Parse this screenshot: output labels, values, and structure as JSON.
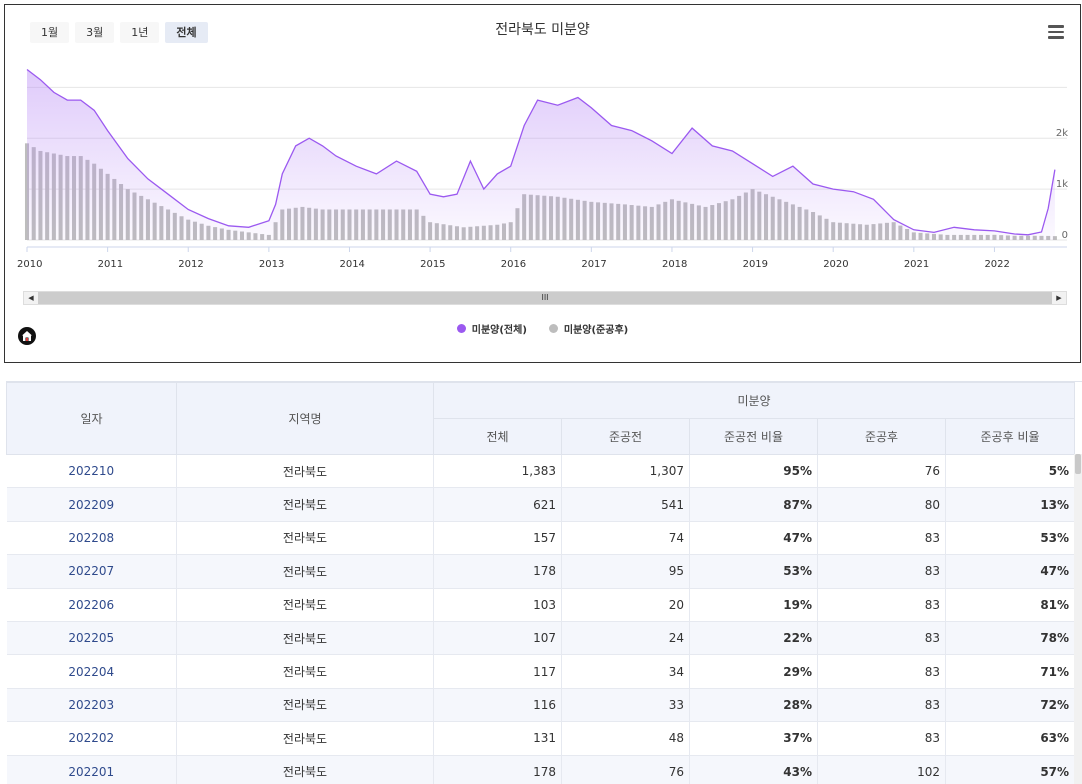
{
  "toolbar": {
    "range_buttons": [
      "1월",
      "3월",
      "1년",
      "전체"
    ],
    "active_range": "전체"
  },
  "legend": {
    "total": "미분양(전체)",
    "after": "미분양(준공후)"
  },
  "colors": {
    "total_line": "#9b59f0",
    "after_bar": "#bdbdbd"
  },
  "scrollbar": {
    "grip": "III"
  },
  "chart_data": {
    "type": "line",
    "title": "전라북도 미분양",
    "xlabel": "",
    "ylabel": "",
    "x_ticks": [
      "2010",
      "2011",
      "2012",
      "2013",
      "2014",
      "2015",
      "2016",
      "2017",
      "2018",
      "2019",
      "2020",
      "2021",
      "2022"
    ],
    "y_ticks": [
      "0",
      "1k",
      "2k"
    ],
    "ylim": [
      0,
      3400
    ],
    "grid": true,
    "legend_position": "bottom",
    "series": [
      {
        "name": "미분양(전체)",
        "type": "area",
        "color": "#9b59f0",
        "points": [
          [
            "2010-01",
            3350
          ],
          [
            "2010-03",
            3150
          ],
          [
            "2010-05",
            2900
          ],
          [
            "2010-07",
            2750
          ],
          [
            "2010-09",
            2750
          ],
          [
            "2010-11",
            2550
          ],
          [
            "2011-01",
            2150
          ],
          [
            "2011-04",
            1600
          ],
          [
            "2011-07",
            1200
          ],
          [
            "2011-10",
            900
          ],
          [
            "2012-01",
            600
          ],
          [
            "2012-04",
            420
          ],
          [
            "2012-07",
            280
          ],
          [
            "2012-10",
            250
          ],
          [
            "2013-01",
            380
          ],
          [
            "2013-02",
            700
          ],
          [
            "2013-03",
            1300
          ],
          [
            "2013-05",
            1850
          ],
          [
            "2013-07",
            2000
          ],
          [
            "2013-09",
            1850
          ],
          [
            "2013-11",
            1650
          ],
          [
            "2014-02",
            1450
          ],
          [
            "2014-05",
            1300
          ],
          [
            "2014-08",
            1550
          ],
          [
            "2014-11",
            1350
          ],
          [
            "2015-01",
            900
          ],
          [
            "2015-03",
            850
          ],
          [
            "2015-05",
            900
          ],
          [
            "2015-07",
            1550
          ],
          [
            "2015-09",
            1000
          ],
          [
            "2015-11",
            1300
          ],
          [
            "2016-01",
            1450
          ],
          [
            "2016-03",
            2250
          ],
          [
            "2016-05",
            2750
          ],
          [
            "2016-08",
            2650
          ],
          [
            "2016-11",
            2800
          ],
          [
            "2017-01",
            2600
          ],
          [
            "2017-04",
            2250
          ],
          [
            "2017-07",
            2150
          ],
          [
            "2017-10",
            1950
          ],
          [
            "2018-01",
            1700
          ],
          [
            "2018-04",
            2200
          ],
          [
            "2018-07",
            1850
          ],
          [
            "2018-10",
            1750
          ],
          [
            "2019-01",
            1500
          ],
          [
            "2019-04",
            1250
          ],
          [
            "2019-07",
            1450
          ],
          [
            "2019-10",
            1100
          ],
          [
            "2020-01",
            1000
          ],
          [
            "2020-04",
            950
          ],
          [
            "2020-07",
            800
          ],
          [
            "2020-10",
            400
          ],
          [
            "2021-01",
            200
          ],
          [
            "2021-04",
            150
          ],
          [
            "2021-07",
            250
          ],
          [
            "2021-10",
            200
          ],
          [
            "2022-01",
            178
          ],
          [
            "2022-04",
            117
          ],
          [
            "2022-06",
            103
          ],
          [
            "2022-08",
            157
          ],
          [
            "2022-09",
            621
          ],
          [
            "2022-10",
            1383
          ]
        ]
      },
      {
        "name": "미분양(준공후)",
        "type": "column",
        "color": "#bdbdbd",
        "points": [
          [
            "2010-01",
            1900
          ],
          [
            "2010-03",
            1750
          ],
          [
            "2010-05",
            1700
          ],
          [
            "2010-07",
            1650
          ],
          [
            "2010-09",
            1650
          ],
          [
            "2010-11",
            1500
          ],
          [
            "2011-01",
            1300
          ],
          [
            "2011-04",
            1000
          ],
          [
            "2011-07",
            800
          ],
          [
            "2011-10",
            600
          ],
          [
            "2012-01",
            400
          ],
          [
            "2012-04",
            280
          ],
          [
            "2012-07",
            200
          ],
          [
            "2012-10",
            150
          ],
          [
            "2013-01",
            100
          ],
          [
            "2013-03",
            600
          ],
          [
            "2013-06",
            650
          ],
          [
            "2013-09",
            600
          ],
          [
            "2014-01",
            600
          ],
          [
            "2014-06",
            600
          ],
          [
            "2014-11",
            600
          ],
          [
            "2015-01",
            350
          ],
          [
            "2015-06",
            250
          ],
          [
            "2015-11",
            300
          ],
          [
            "2016-01",
            350
          ],
          [
            "2016-03",
            900
          ],
          [
            "2016-08",
            850
          ],
          [
            "2017-01",
            750
          ],
          [
            "2017-06",
            700
          ],
          [
            "2017-10",
            650
          ],
          [
            "2018-01",
            800
          ],
          [
            "2018-06",
            650
          ],
          [
            "2018-10",
            800
          ],
          [
            "2019-01",
            1000
          ],
          [
            "2019-05",
            800
          ],
          [
            "2019-10",
            550
          ],
          [
            "2020-01",
            350
          ],
          [
            "2020-06",
            300
          ],
          [
            "2020-10",
            350
          ],
          [
            "2021-01",
            150
          ],
          [
            "2021-06",
            100
          ],
          [
            "2021-12",
            100
          ],
          [
            "2022-01",
            102
          ],
          [
            "2022-04",
            83
          ],
          [
            "2022-07",
            83
          ],
          [
            "2022-09",
            80
          ],
          [
            "2022-10",
            76
          ]
        ]
      }
    ]
  },
  "table": {
    "group_header": "미분양",
    "headers": {
      "date": "일자",
      "region": "지역명",
      "total": "전체",
      "before": "준공전",
      "before_ratio": "준공전 비율",
      "after": "준공후",
      "after_ratio": "준공후 비율"
    },
    "rows": [
      {
        "date": "202210",
        "region": "전라북도",
        "total": "1,383",
        "before": "1,307",
        "before_ratio": "95%",
        "after": "76",
        "after_ratio": "5%"
      },
      {
        "date": "202209",
        "region": "전라북도",
        "total": "621",
        "before": "541",
        "before_ratio": "87%",
        "after": "80",
        "after_ratio": "13%"
      },
      {
        "date": "202208",
        "region": "전라북도",
        "total": "157",
        "before": "74",
        "before_ratio": "47%",
        "after": "83",
        "after_ratio": "53%"
      },
      {
        "date": "202207",
        "region": "전라북도",
        "total": "178",
        "before": "95",
        "before_ratio": "53%",
        "after": "83",
        "after_ratio": "47%"
      },
      {
        "date": "202206",
        "region": "전라북도",
        "total": "103",
        "before": "20",
        "before_ratio": "19%",
        "after": "83",
        "after_ratio": "81%"
      },
      {
        "date": "202205",
        "region": "전라북도",
        "total": "107",
        "before": "24",
        "before_ratio": "22%",
        "after": "83",
        "after_ratio": "78%"
      },
      {
        "date": "202204",
        "region": "전라북도",
        "total": "117",
        "before": "34",
        "before_ratio": "29%",
        "after": "83",
        "after_ratio": "71%"
      },
      {
        "date": "202203",
        "region": "전라북도",
        "total": "116",
        "before": "33",
        "before_ratio": "28%",
        "after": "83",
        "after_ratio": "72%"
      },
      {
        "date": "202202",
        "region": "전라북도",
        "total": "131",
        "before": "48",
        "before_ratio": "37%",
        "after": "83",
        "after_ratio": "63%"
      },
      {
        "date": "202201",
        "region": "전라북도",
        "total": "178",
        "before": "76",
        "before_ratio": "43%",
        "after": "102",
        "after_ratio": "57%"
      }
    ]
  }
}
